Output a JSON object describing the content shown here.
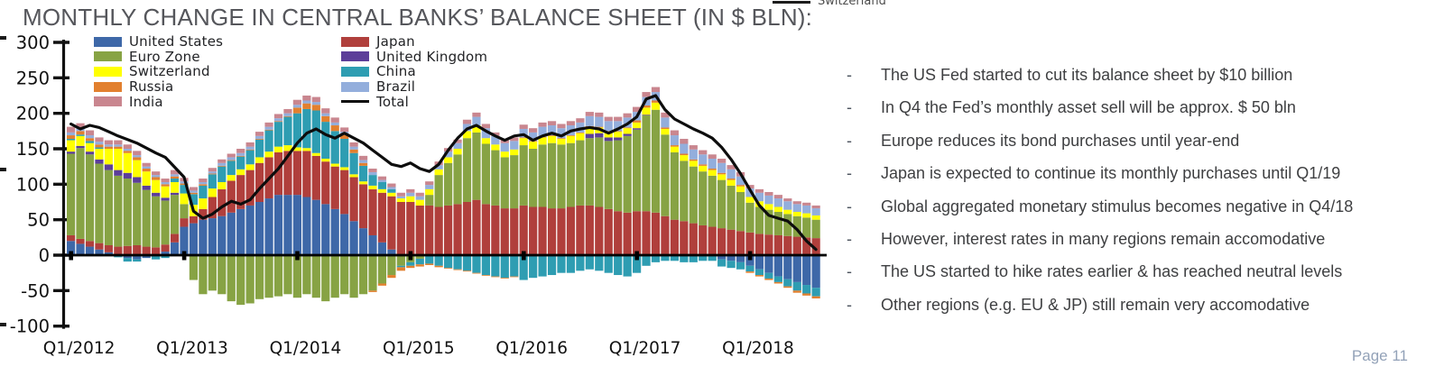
{
  "title": "MONTHLY CHANGE IN CENTRAL BANKS’ BALANCE SHEET (IN $ BLN):",
  "cropped_legend_fragment": "Switzerland",
  "page_label": "Page 11",
  "bullets": [
    "The US Fed started to cut its balance sheet by $10 billion",
    "In Q4 the Fed’s monthly asset sell will be approx. $ 50 bln",
    "Europe reduces its bond purchases until year-end",
    "Japan is expected to continue its monthly purchases until Q1/19",
    "Global aggregated monetary stimulus becomes negative in Q4/18",
    "However, interest rates in many regions remain accomodative",
    "The US started to hike rates earlier & has reached neutral levels",
    "Other regions (e.g. EU & JP) still remain very accomodative"
  ],
  "chart_data": {
    "type": "bar",
    "subtype": "stacked-monthly-bars-with-total-line",
    "title": "MONTHLY CHANGE IN CENTRAL BANKS’ BALANCE SHEET (IN $ BLN)",
    "ylim": [
      -100,
      300
    ],
    "y_ticks": [
      300,
      250,
      200,
      150,
      100,
      50,
      0,
      -50,
      -100
    ],
    "grid": false,
    "legend_position": "top-inside",
    "legend_columns": {
      "left": [
        "United States",
        "Euro Zone",
        "Switzerland",
        "Russia",
        "India"
      ],
      "right": [
        "Japan",
        "United Kingdom",
        "China",
        "Brazil",
        "Total"
      ]
    },
    "x_tick_labels": [
      "Q1/2012",
      "Q1/2013",
      "Q1/2014",
      "Q1/2015",
      "Q1/2016",
      "Q1/2017",
      "Q1/2018"
    ],
    "x_tick_month_indices": [
      0,
      12,
      24,
      36,
      48,
      60,
      72
    ],
    "x": [
      "2012-01",
      "2012-02",
      "2012-03",
      "2012-04",
      "2012-05",
      "2012-06",
      "2012-07",
      "2012-08",
      "2012-09",
      "2012-10",
      "2012-11",
      "2012-12",
      "2013-01",
      "2013-02",
      "2013-03",
      "2013-04",
      "2013-05",
      "2013-06",
      "2013-07",
      "2013-08",
      "2013-09",
      "2013-10",
      "2013-11",
      "2013-12",
      "2014-01",
      "2014-02",
      "2014-03",
      "2014-04",
      "2014-05",
      "2014-06",
      "2014-07",
      "2014-08",
      "2014-09",
      "2014-10",
      "2014-11",
      "2014-12",
      "2015-01",
      "2015-02",
      "2015-03",
      "2015-04",
      "2015-05",
      "2015-06",
      "2015-07",
      "2015-08",
      "2015-09",
      "2015-10",
      "2015-11",
      "2015-12",
      "2016-01",
      "2016-02",
      "2016-03",
      "2016-04",
      "2016-05",
      "2016-06",
      "2016-07",
      "2016-08",
      "2016-09",
      "2016-10",
      "2016-11",
      "2016-12",
      "2017-01",
      "2017-02",
      "2017-03",
      "2017-04",
      "2017-05",
      "2017-06",
      "2017-07",
      "2017-08",
      "2017-09",
      "2017-10",
      "2017-11",
      "2017-12",
      "2018-01",
      "2018-02",
      "2018-03",
      "2018-04",
      "2018-05",
      "2018-06",
      "2018-07",
      "2018-08"
    ],
    "series": [
      {
        "name": "United States",
        "color": "#3E68A8",
        "values": [
          20,
          16,
          12,
          8,
          4,
          0,
          -4,
          -6,
          -4,
          0,
          5,
          18,
          40,
          45,
          50,
          52,
          55,
          60,
          65,
          70,
          75,
          80,
          85,
          85,
          85,
          82,
          78,
          72,
          65,
          58,
          48,
          38,
          28,
          18,
          8,
          0,
          0,
          0,
          0,
          0,
          0,
          0,
          0,
          0,
          0,
          0,
          0,
          0,
          0,
          0,
          0,
          0,
          0,
          0,
          0,
          0,
          0,
          0,
          0,
          0,
          0,
          0,
          0,
          0,
          0,
          0,
          0,
          0,
          0,
          -6,
          -8,
          -10,
          -15,
          -20,
          -25,
          -30,
          -34,
          -38,
          -42,
          -46
        ]
      },
      {
        "name": "Japan",
        "color": "#B03F3C",
        "values": [
          8,
          7,
          8,
          9,
          10,
          12,
          13,
          14,
          12,
          11,
          10,
          12,
          12,
          10,
          15,
          30,
          38,
          45,
          48,
          50,
          55,
          58,
          60,
          62,
          62,
          65,
          62,
          60,
          60,
          62,
          62,
          62,
          65,
          70,
          75,
          75,
          75,
          70,
          70,
          68,
          70,
          72,
          75,
          78,
          72,
          70,
          66,
          66,
          70,
          68,
          68,
          66,
          66,
          68,
          70,
          70,
          68,
          65,
          62,
          60,
          62,
          62,
          60,
          55,
          50,
          48,
          45,
          42,
          40,
          38,
          36,
          34,
          32,
          30,
          29,
          28,
          27,
          26,
          25,
          24
        ]
      },
      {
        "name": "Euro Zone",
        "color": "#87A344",
        "values": [
          115,
          128,
          122,
          112,
          106,
          100,
          95,
          88,
          80,
          72,
          62,
          55,
          20,
          -35,
          -55,
          -50,
          -55,
          -65,
          -70,
          -68,
          -62,
          -60,
          -58,
          -55,
          -60,
          -55,
          -60,
          -65,
          -60,
          -55,
          -60,
          -55,
          -50,
          -40,
          -28,
          -15,
          -10,
          -5,
          15,
          45,
          60,
          70,
          90,
          95,
          85,
          78,
          72,
          75,
          85,
          82,
          88,
          92,
          90,
          90,
          92,
          95,
          98,
          96,
          100,
          108,
          115,
          135,
          145,
          115,
          95,
          85,
          80,
          76,
          72,
          68,
          62,
          55,
          42,
          38,
          35,
          33,
          31,
          29,
          28,
          26
        ]
      },
      {
        "name": "United Kingdom",
        "color": "#5C3E99",
        "values": [
          3,
          3,
          4,
          6,
          8,
          8,
          8,
          8,
          6,
          5,
          4,
          3,
          0,
          0,
          0,
          0,
          0,
          0,
          0,
          0,
          0,
          0,
          0,
          0,
          0,
          0,
          0,
          0,
          0,
          0,
          0,
          0,
          0,
          0,
          0,
          0,
          0,
          0,
          0,
          0,
          0,
          0,
          0,
          0,
          0,
          0,
          0,
          0,
          0,
          0,
          0,
          0,
          0,
          0,
          0,
          6,
          6,
          5,
          4,
          3,
          2,
          1,
          0,
          0,
          0,
          0,
          0,
          0,
          0,
          0,
          0,
          0,
          0,
          0,
          0,
          0,
          0,
          0,
          0,
          0
        ]
      },
      {
        "name": "Switzerland",
        "color": "#FFFF00",
        "values": [
          16,
          14,
          12,
          15,
          22,
          30,
          28,
          24,
          20,
          18,
          16,
          15,
          15,
          16,
          15,
          12,
          10,
          8,
          8,
          8,
          8,
          8,
          8,
          8,
          5,
          4,
          4,
          4,
          4,
          4,
          4,
          4,
          5,
          5,
          5,
          5,
          8,
          8,
          8,
          8,
          8,
          8,
          10,
          10,
          8,
          8,
          8,
          8,
          10,
          10,
          10,
          10,
          8,
          10,
          10,
          10,
          8,
          8,
          8,
          8,
          8,
          10,
          10,
          8,
          8,
          8,
          8,
          8,
          8,
          8,
          8,
          8,
          8,
          8,
          8,
          7,
          6,
          6,
          6,
          6
        ]
      },
      {
        "name": "China",
        "color": "#2E9DB2",
        "values": [
          2,
          2,
          3,
          2,
          0,
          -3,
          -5,
          -3,
          0,
          -6,
          -4,
          5,
          12,
          15,
          18,
          20,
          22,
          20,
          18,
          20,
          25,
          30,
          35,
          40,
          48,
          55,
          60,
          52,
          46,
          40,
          30,
          22,
          15,
          10,
          5,
          -2,
          -5,
          -8,
          -12,
          -15,
          -18,
          -20,
          -22,
          -25,
          -28,
          -30,
          -32,
          -30,
          -35,
          -32,
          -30,
          -28,
          -25,
          -25,
          -22,
          -20,
          -22,
          -25,
          -28,
          -30,
          -25,
          -15,
          -10,
          -8,
          -8,
          -10,
          -10,
          -8,
          -8,
          -10,
          -10,
          -10,
          -8,
          -8,
          -8,
          -8,
          -10,
          -12,
          -12,
          -12
        ]
      },
      {
        "name": "Russia",
        "color": "#E2802F",
        "values": [
          5,
          5,
          4,
          4,
          3,
          3,
          3,
          4,
          4,
          4,
          3,
          3,
          2,
          2,
          2,
          1,
          1,
          1,
          1,
          1,
          1,
          1,
          1,
          1,
          8,
          8,
          8,
          8,
          8,
          6,
          5,
          4,
          -2,
          -3,
          -4,
          -5,
          -3,
          -3,
          -2,
          -2,
          -1,
          -1,
          -1,
          -1,
          -1,
          -1,
          -1,
          -1,
          1,
          1,
          1,
          1,
          1,
          1,
          1,
          1,
          1,
          1,
          1,
          1,
          3,
          3,
          3,
          2,
          2,
          2,
          2,
          2,
          2,
          2,
          2,
          2,
          -2,
          -2,
          -2,
          -2,
          -2,
          -3,
          -3,
          -3
        ]
      },
      {
        "name": "Brazil",
        "color": "#93AEDC",
        "values": [
          4,
          4,
          4,
          4,
          3,
          3,
          3,
          3,
          3,
          3,
          3,
          3,
          3,
          3,
          3,
          3,
          4,
          4,
          4,
          4,
          4,
          4,
          4,
          4,
          4,
          4,
          4,
          4,
          4,
          4,
          4,
          4,
          4,
          3,
          3,
          3,
          5,
          5,
          6,
          6,
          8,
          8,
          10,
          12,
          14,
          12,
          12,
          12,
          12,
          12,
          14,
          14,
          14,
          14,
          14,
          14,
          14,
          14,
          14,
          14,
          12,
          12,
          12,
          14,
          14,
          14,
          14,
          14,
          14,
          14,
          13,
          12,
          12,
          12,
          12,
          12,
          12,
          11,
          11,
          10
        ]
      },
      {
        "name": "India",
        "color": "#C9868F",
        "values": [
          8,
          7,
          7,
          6,
          6,
          6,
          6,
          6,
          5,
          5,
          5,
          6,
          5,
          5,
          5,
          5,
          5,
          5,
          6,
          6,
          6,
          6,
          6,
          6,
          7,
          7,
          7,
          7,
          7,
          6,
          6,
          6,
          5,
          5,
          5,
          5,
          5,
          5,
          5,
          5,
          5,
          5,
          6,
          6,
          6,
          5,
          5,
          5,
          6,
          6,
          6,
          6,
          6,
          6,
          6,
          6,
          6,
          6,
          6,
          6,
          7,
          7,
          7,
          7,
          7,
          7,
          6,
          6,
          6,
          6,
          6,
          6,
          5,
          5,
          5,
          5,
          4,
          4,
          4,
          4
        ]
      }
    ],
    "total": {
      "name": "Total",
      "color": "#0D0D0D",
      "values": [
        185,
        178,
        183,
        180,
        174,
        168,
        163,
        158,
        151,
        144,
        138,
        124,
        110,
        62,
        52,
        58,
        68,
        76,
        72,
        78,
        94,
        108,
        122,
        140,
        158,
        172,
        178,
        170,
        165,
        172,
        165,
        158,
        148,
        138,
        128,
        125,
        130,
        122,
        118,
        128,
        148,
        165,
        178,
        183,
        175,
        168,
        162,
        168,
        170,
        162,
        168,
        172,
        168,
        175,
        178,
        180,
        178,
        172,
        178,
        185,
        195,
        220,
        225,
        205,
        192,
        185,
        178,
        172,
        165,
        152,
        135,
        115,
        92,
        70,
        56,
        52,
        48,
        36,
        20,
        8
      ]
    }
  }
}
